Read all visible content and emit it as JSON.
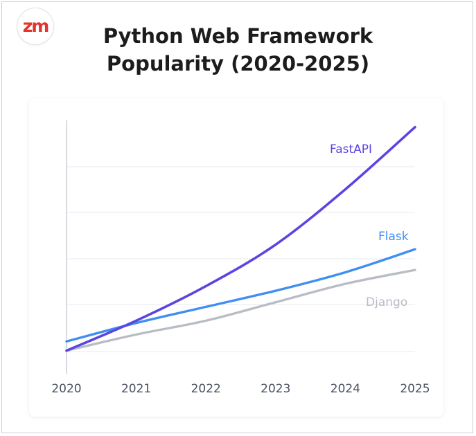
{
  "logo": {
    "text_z": "z",
    "text_m": "m"
  },
  "title_line1": "Python Web Framework",
  "title_line2": "Popularity (2020-2025)",
  "colors": {
    "fastapi": "#5b45e0",
    "flask": "#3f8ef0",
    "django": "#b8bcc4",
    "grid": "#e8e9ee",
    "axis": "#bfc2ca",
    "tick": "#4a5160"
  },
  "chart_data": {
    "type": "line",
    "title": "Python Web Framework Popularity (2020-2025)",
    "xlabel": "",
    "ylabel": "",
    "x": [
      2020,
      2021,
      2022,
      2023,
      2024,
      2025
    ],
    "x_tick_labels": [
      "2020",
      "2021",
      "2022",
      "2023",
      "2024",
      "2025"
    ],
    "ylim": [
      0,
      100
    ],
    "y_grid": [
      0,
      20,
      40,
      60,
      80
    ],
    "grid": true,
    "series": [
      {
        "name": "FastAPI",
        "color": "#5b45e0",
        "values": [
          1,
          14,
          29,
          47,
          71,
          98
        ]
      },
      {
        "name": "Flask",
        "color": "#3f8ef0",
        "values": [
          5,
          13,
          20,
          27,
          35,
          45
        ]
      },
      {
        "name": "Django",
        "color": "#b8bcc4",
        "values": [
          1,
          8,
          14,
          22,
          30,
          36
        ]
      }
    ]
  }
}
